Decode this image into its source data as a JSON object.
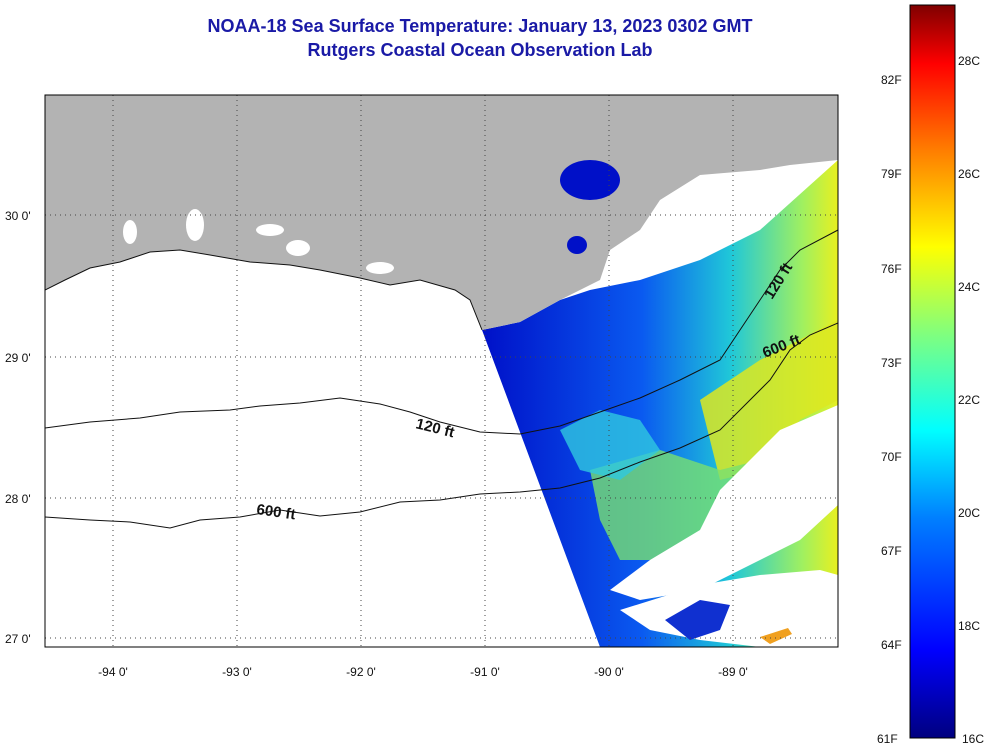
{
  "title_line1": "NOAA-18 Sea Surface Temperature:  January 13, 2023 0302 GMT",
  "title_line2": "Rutgers Coastal Ocean Observation Lab",
  "map": {
    "land_color": "#b3b3b3",
    "no_data_color": "#ffffff",
    "lat_labels": [
      {
        "value": 30,
        "text": "30 0'"
      },
      {
        "value": 29,
        "text": "29 0'"
      },
      {
        "value": 28,
        "text": "28 0'"
      },
      {
        "value": 27,
        "text": "27 0'"
      }
    ],
    "lon_labels": [
      {
        "value": -94,
        "text": "-94 0'"
      },
      {
        "value": -93,
        "text": "-93 0'"
      },
      {
        "value": -92,
        "text": "-92 0'"
      },
      {
        "value": -91,
        "text": "-91 0'"
      },
      {
        "value": -90,
        "text": "-90 0'"
      },
      {
        "value": -89,
        "text": "-89 0'"
      }
    ],
    "contour_labels": [
      "120 ft",
      "600 ft",
      "600 ft",
      "120 ft"
    ]
  },
  "colorbar": {
    "fahrenheit": [
      "82F",
      "79F",
      "76F",
      "73F",
      "70F",
      "67F",
      "64F",
      "61F"
    ],
    "celsius": [
      "28C",
      "26C",
      "24C",
      "22C",
      "20C",
      "18C",
      "16C"
    ],
    "colors": [
      "#00007f",
      "#0000ff",
      "#007fff",
      "#00ffff",
      "#7fff7f",
      "#ffff00",
      "#ff7f00",
      "#ff0000",
      "#7f0000"
    ]
  }
}
